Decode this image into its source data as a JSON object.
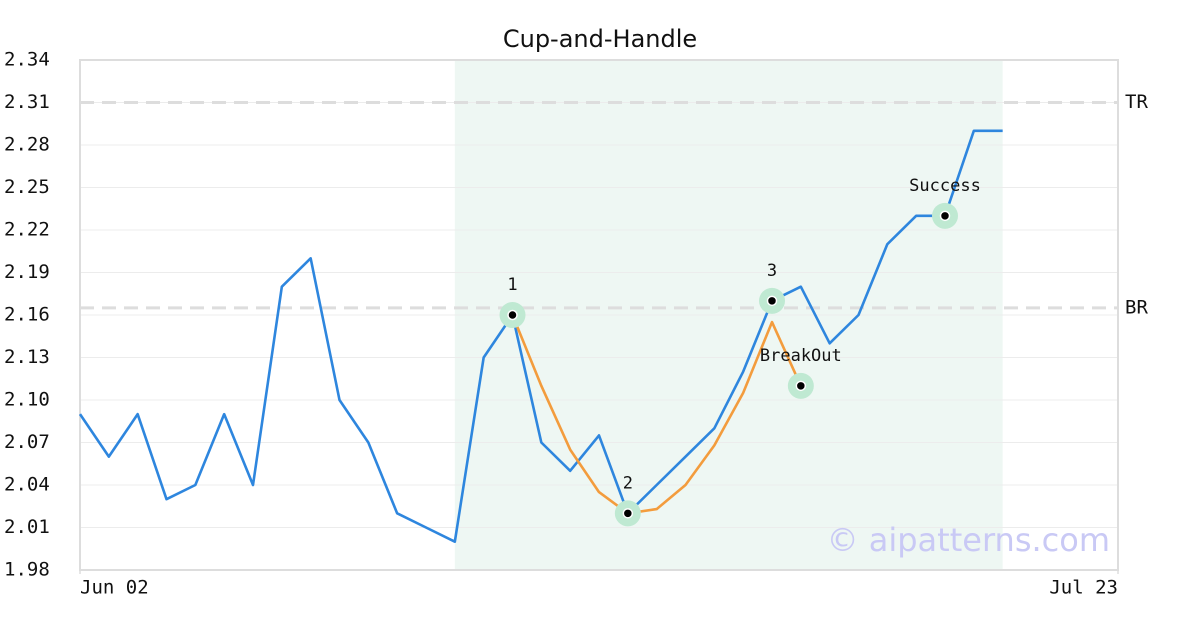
{
  "chart_data": {
    "type": "line",
    "title": "Cup-and-Handle",
    "watermark": "© aipatterns.com",
    "xlim": [
      0,
      36
    ],
    "xticks": [
      {
        "value": 0,
        "label": "Jun 02"
      },
      {
        "value": 36,
        "label": "Jul 23"
      }
    ],
    "ylim": [
      1.98,
      2.34
    ],
    "yticks": [
      1.98,
      2.01,
      2.04,
      2.07,
      {
        "value": 2.1,
        "label": "2.10"
      },
      2.13,
      2.16,
      2.19,
      2.22,
      2.25,
      2.28,
      2.31,
      2.34
    ],
    "grid": true,
    "shaded_range": [
      13,
      32
    ],
    "shade_color": "#eef7f3",
    "hlines": [
      {
        "label": "TR",
        "value": 2.31
      },
      {
        "label": "BR",
        "value": 2.165
      }
    ],
    "x": [
      0,
      1,
      2,
      3,
      4,
      5,
      6,
      7,
      8,
      9,
      10,
      11,
      12,
      13,
      14,
      15,
      16,
      17,
      18,
      19,
      20,
      21,
      22,
      23,
      24,
      25,
      26,
      27,
      28,
      29,
      30,
      31,
      32
    ],
    "series": [
      {
        "color": "#2e86de",
        "values": [
          2.09,
          2.06,
          2.09,
          2.03,
          2.04,
          2.09,
          2.04,
          2.18,
          2.2,
          2.1,
          2.07,
          2.02,
          2.01,
          2.0,
          2.13,
          2.16,
          2.07,
          2.05,
          2.075,
          2.02,
          2.04,
          2.06,
          2.08,
          2.12,
          2.17,
          2.18,
          2.14,
          2.16,
          2.21,
          2.23,
          2.23,
          2.29,
          2.29
        ]
      },
      {
        "color": "#f39c3d",
        "values": [
          null,
          null,
          null,
          null,
          null,
          null,
          null,
          null,
          null,
          null,
          null,
          null,
          null,
          null,
          null,
          2.16,
          2.11,
          2.065,
          2.035,
          2.02,
          2.023,
          2.04,
          2.068,
          2.105,
          2.155,
          2.11,
          null,
          null,
          null,
          null,
          null,
          null,
          null
        ]
      }
    ],
    "annotations": [
      {
        "label": "1",
        "x": 15,
        "y": 2.16
      },
      {
        "label": "2",
        "x": 19,
        "y": 2.02
      },
      {
        "label": "3",
        "x": 24,
        "y": 2.17
      },
      {
        "label": "BreakOut",
        "x": 25,
        "y": 2.11
      },
      {
        "label": "Success",
        "x": 30,
        "y": 2.23
      }
    ]
  }
}
